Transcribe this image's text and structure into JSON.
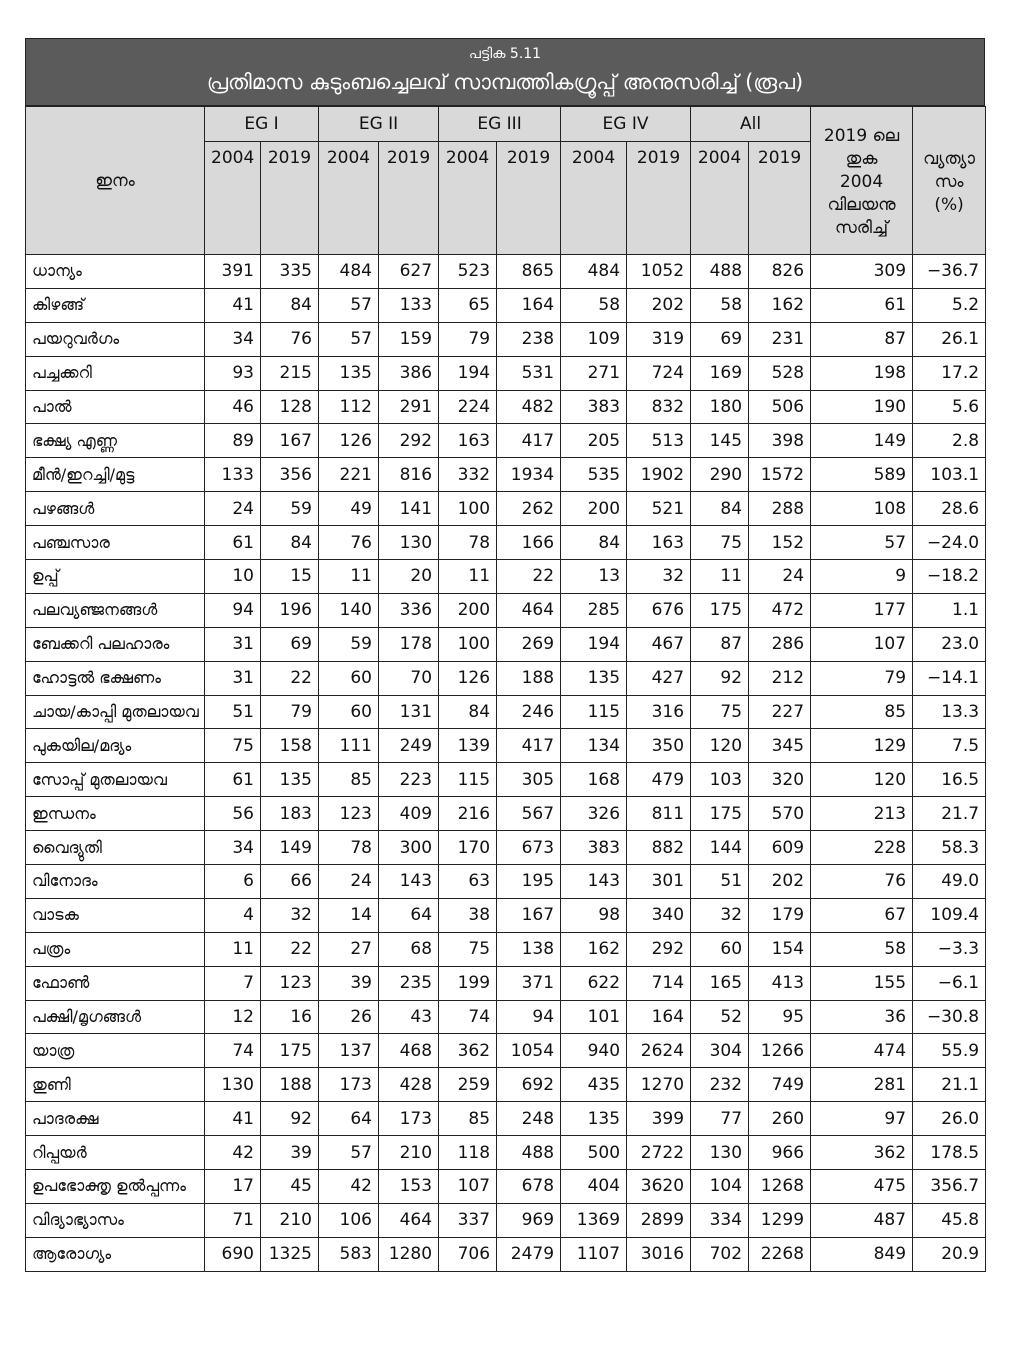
{
  "header": {
    "label": "പട്ടിക 5.11",
    "title": "പ്രതിമാസ കുടുംബച്ചെലവ് സാമ്പത്തികഗ്രൂപ്പ് അനുസരിച്ച് (രൂപ)"
  },
  "table": {
    "item_header": "ഇനം",
    "groups": [
      {
        "name": "EG I",
        "years": [
          "2004",
          "2019"
        ]
      },
      {
        "name": "EG II",
        "years": [
          "2004",
          "2019"
        ]
      },
      {
        "name": "EG III",
        "years": [
          "2004",
          "2019"
        ]
      },
      {
        "name": "EG IV",
        "years": [
          "2004",
          "2019"
        ]
      },
      {
        "name": "All",
        "years": [
          "2004",
          "2019"
        ]
      }
    ],
    "price_header": [
      "2019 ലെ",
      "തുക",
      "2004",
      "വിലയനു",
      "സരിച്ച്"
    ],
    "diff_header": [
      "വ്യത്യാ",
      "സം",
      "(%)"
    ],
    "rows": [
      [
        "ധാന്യം",
        "391",
        "335",
        "484",
        "627",
        "523",
        "865",
        "484",
        "1052",
        "488",
        "826",
        "309",
        "−36.7"
      ],
      [
        "കിഴങ്ങ്",
        "41",
        "84",
        "57",
        "133",
        "65",
        "164",
        "58",
        "202",
        "58",
        "162",
        "61",
        "5.2"
      ],
      [
        "പയറുവർഗം",
        "34",
        "76",
        "57",
        "159",
        "79",
        "238",
        "109",
        "319",
        "69",
        "231",
        "87",
        "26.1"
      ],
      [
        "പച്ചക്കറി",
        "93",
        "215",
        "135",
        "386",
        "194",
        "531",
        "271",
        "724",
        "169",
        "528",
        "198",
        "17.2"
      ],
      [
        "പാൽ",
        "46",
        "128",
        "112",
        "291",
        "224",
        "482",
        "383",
        "832",
        "180",
        "506",
        "190",
        "5.6"
      ],
      [
        "ഭക്ഷ്യ എണ്ണ",
        "89",
        "167",
        "126",
        "292",
        "163",
        "417",
        "205",
        "513",
        "145",
        "398",
        "149",
        "2.8"
      ],
      [
        "മീൻ/ഇറച്ചി/മുട്ട",
        "133",
        "356",
        "221",
        "816",
        "332",
        "1934",
        "535",
        "1902",
        "290",
        "1572",
        "589",
        "103.1"
      ],
      [
        "പഴങ്ങൾ",
        "24",
        "59",
        "49",
        "141",
        "100",
        "262",
        "200",
        "521",
        "84",
        "288",
        "108",
        "28.6"
      ],
      [
        "പഞ്ചസാര",
        "61",
        "84",
        "76",
        "130",
        "78",
        "166",
        "84",
        "163",
        "75",
        "152",
        "57",
        "−24.0"
      ],
      [
        "ഉപ്പ്",
        "10",
        "15",
        "11",
        "20",
        "11",
        "22",
        "13",
        "32",
        "11",
        "24",
        "9",
        "−18.2"
      ],
      [
        "പലവ്യഞ്ജനങ്ങൾ",
        "94",
        "196",
        "140",
        "336",
        "200",
        "464",
        "285",
        "676",
        "175",
        "472",
        "177",
        "1.1"
      ],
      [
        "ബേക്കറി പലഹാരം",
        "31",
        "69",
        "59",
        "178",
        "100",
        "269",
        "194",
        "467",
        "87",
        "286",
        "107",
        "23.0"
      ],
      [
        "ഹോട്ടൽ ഭക്ഷണം",
        "31",
        "22",
        "60",
        "70",
        "126",
        "188",
        "135",
        "427",
        "92",
        "212",
        "79",
        "−14.1"
      ],
      [
        "ചായ/കാപ്പി മുതലായവ",
        "51",
        "79",
        "60",
        "131",
        "84",
        "246",
        "115",
        "316",
        "75",
        "227",
        "85",
        "13.3"
      ],
      [
        "പുകയില/മദ്യം",
        "75",
        "158",
        "111",
        "249",
        "139",
        "417",
        "134",
        "350",
        "120",
        "345",
        "129",
        "7.5"
      ],
      [
        "സോപ്പ് മുതലായവ",
        "61",
        "135",
        "85",
        "223",
        "115",
        "305",
        "168",
        "479",
        "103",
        "320",
        "120",
        "16.5"
      ],
      [
        "ഇന്ധനം",
        "56",
        "183",
        "123",
        "409",
        "216",
        "567",
        "326",
        "811",
        "175",
        "570",
        "213",
        "21.7"
      ],
      [
        "വൈദ്യുതി",
        "34",
        "149",
        "78",
        "300",
        "170",
        "673",
        "383",
        "882",
        "144",
        "609",
        "228",
        "58.3"
      ],
      [
        "വിനോദം",
        "6",
        "66",
        "24",
        "143",
        "63",
        "195",
        "143",
        "301",
        "51",
        "202",
        "76",
        "49.0"
      ],
      [
        "വാടക",
        "4",
        "32",
        "14",
        "64",
        "38",
        "167",
        "98",
        "340",
        "32",
        "179",
        "67",
        "109.4"
      ],
      [
        "പത്രം",
        "11",
        "22",
        "27",
        "68",
        "75",
        "138",
        "162",
        "292",
        "60",
        "154",
        "58",
        "−3.3"
      ],
      [
        "ഫോൺ",
        "7",
        "123",
        "39",
        "235",
        "199",
        "371",
        "622",
        "714",
        "165",
        "413",
        "155",
        "−6.1"
      ],
      [
        "പക്ഷി/മൃഗങ്ങൾ",
        "12",
        "16",
        "26",
        "43",
        "74",
        "94",
        "101",
        "164",
        "52",
        "95",
        "36",
        "−30.8"
      ],
      [
        "യാത്ര",
        "74",
        "175",
        "137",
        "468",
        "362",
        "1054",
        "940",
        "2624",
        "304",
        "1266",
        "474",
        "55.9"
      ],
      [
        "തുണി",
        "130",
        "188",
        "173",
        "428",
        "259",
        "692",
        "435",
        "1270",
        "232",
        "749",
        "281",
        "21.1"
      ],
      [
        "പാദരക്ഷ",
        "41",
        "92",
        "64",
        "173",
        "85",
        "248",
        "135",
        "399",
        "77",
        "260",
        "97",
        "26.0"
      ],
      [
        "റിപ്പയർ",
        "42",
        "39",
        "57",
        "210",
        "118",
        "488",
        "500",
        "2722",
        "130",
        "966",
        "362",
        "178.5"
      ],
      [
        "ഉപഭോക്തൃ ഉൽപ്പന്നം",
        "17",
        "45",
        "42",
        "153",
        "107",
        "678",
        "404",
        "3620",
        "104",
        "1268",
        "475",
        "356.7"
      ],
      [
        "വിദ്യാഭ്യാസം",
        "71",
        "210",
        "106",
        "464",
        "337",
        "969",
        "1369",
        "2899",
        "334",
        "1299",
        "487",
        "45.8"
      ],
      [
        "ആരോഗ്യം",
        "690",
        "1325",
        "583",
        "1280",
        "706",
        "2479",
        "1107",
        "3016",
        "702",
        "2268",
        "849",
        "20.9"
      ]
    ]
  }
}
